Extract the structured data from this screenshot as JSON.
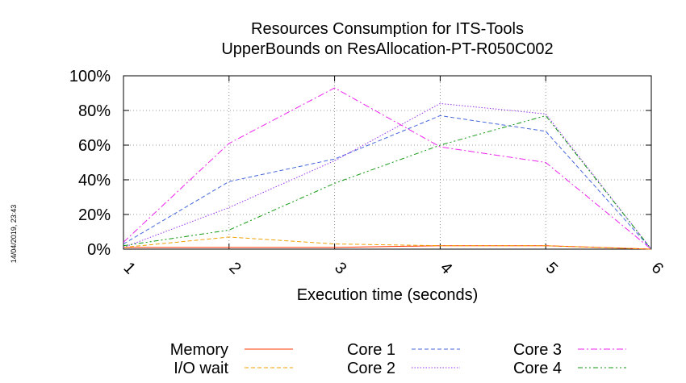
{
  "chart_data": {
    "type": "line",
    "title": "Resources Consumption for ITS-Tools",
    "subtitle": "UpperBounds on ResAllocation-PT-R050C002",
    "xlabel": "Execution time (seconds)",
    "ylabel": "",
    "x": [
      1,
      2,
      3,
      4,
      5,
      6
    ],
    "x_ticks": [
      "1",
      "2",
      "3",
      "4",
      "5",
      "6"
    ],
    "y_ticks": [
      "0%",
      "20%",
      "40%",
      "60%",
      "80%",
      "100%"
    ],
    "xlim": [
      1,
      6
    ],
    "ylim": [
      0,
      100
    ],
    "grid": true,
    "legend_position": "bottom",
    "timestamp": "14/04/2019, 23:43",
    "series": [
      {
        "name": "Memory",
        "color": "#ff3300",
        "dash": "solid",
        "values": [
          1,
          1,
          1,
          2,
          2,
          0
        ]
      },
      {
        "name": "I/O wait",
        "color": "#f0a000",
        "dash": "dashed",
        "values": [
          1,
          7,
          3,
          2,
          2,
          0
        ]
      },
      {
        "name": "Core 1",
        "color": "#4466dd",
        "dash": "dashed",
        "values": [
          3,
          39,
          52,
          77,
          68,
          0
        ]
      },
      {
        "name": "Core 2",
        "color": "#9933ee",
        "dash": "dotted",
        "values": [
          1,
          24,
          51,
          84,
          78,
          0
        ]
      },
      {
        "name": "Core 3",
        "color": "#ee22ee",
        "dash": "dashdot",
        "values": [
          4,
          61,
          93,
          59,
          50,
          0
        ]
      },
      {
        "name": "Core 4",
        "color": "#119911",
        "dash": "dashdotdot",
        "values": [
          2,
          11,
          38,
          60,
          77,
          0
        ]
      }
    ]
  }
}
